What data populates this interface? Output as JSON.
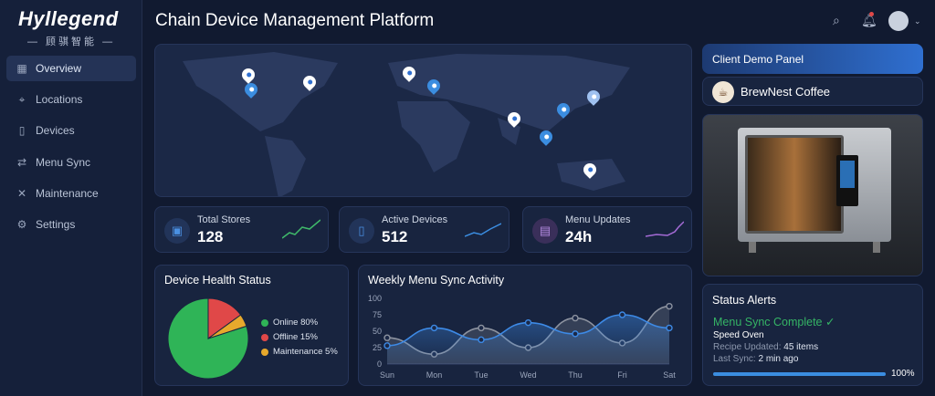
{
  "brand": {
    "name": "Hyllegend",
    "subtitle": "— 顾骐智能 —"
  },
  "header": {
    "title": "Chain Device Management Platform",
    "icons": [
      "search-icon",
      "bell-icon",
      "user-avatar-icon",
      "chevron-down-icon"
    ]
  },
  "sidebar": {
    "items": [
      {
        "label": "Overview",
        "icon": "grid-icon",
        "active": true
      },
      {
        "label": "Locations",
        "icon": "map-pin-icon"
      },
      {
        "label": "Devices",
        "icon": "phone-icon"
      },
      {
        "label": "Menu Sync",
        "icon": "sync-icon"
      },
      {
        "label": "Maintenance",
        "icon": "wrench-icon"
      },
      {
        "label": "Settings",
        "icon": "gear-icon"
      }
    ]
  },
  "stats": [
    {
      "label": "Total Stores",
      "value": "128",
      "icon": "store-icon",
      "color": "#3fb96a"
    },
    {
      "label": "Active Devices",
      "value": "512",
      "icon": "device-icon",
      "color": "#3b8de0"
    },
    {
      "label": "Menu Updates",
      "value": "24h",
      "icon": "document-icon",
      "color": "#a46bd6"
    }
  ],
  "health": {
    "title": "Device Health Status",
    "legend": [
      "Online 80%",
      "Offline 15%",
      "Maintenance 5%"
    ]
  },
  "chart_data": [
    {
      "type": "pie",
      "title": "Device Health Status",
      "categories": [
        "Online",
        "Offline",
        "Maintenance"
      ],
      "values": [
        80,
        15,
        5
      ],
      "colors": [
        "#2fb457",
        "#e04848",
        "#e7a92c"
      ]
    },
    {
      "type": "line",
      "title": "Weekly Menu Sync Activity",
      "categories": [
        "Sun",
        "Mon",
        "Tue",
        "Wed",
        "Thu",
        "Fri",
        "Sat"
      ],
      "ylim": [
        0,
        100
      ],
      "yticks": [
        "0",
        "25",
        "50",
        "75",
        "100"
      ],
      "series": [
        {
          "values": [
            28,
            55,
            37,
            63,
            46,
            75,
            55
          ],
          "color": "#3d8ae6"
        },
        {
          "values": [
            40,
            15,
            55,
            25,
            70,
            32,
            88
          ],
          "color": "#8d93a0"
        }
      ]
    }
  ],
  "client": {
    "panel_title": "Client Demo Panel",
    "name": "BrewNest Coffee",
    "logo": "coffee-cup-icon"
  },
  "alerts": {
    "title": "Status Alerts",
    "status": "Menu Sync Complete ✓",
    "device": "Speed Oven",
    "recipe_label": "Recipe Updated:",
    "recipe_value": "45 items",
    "sync_label": "Last Sync:",
    "sync_value": "2 min ago",
    "progress": 100,
    "progress_label": "100%"
  }
}
